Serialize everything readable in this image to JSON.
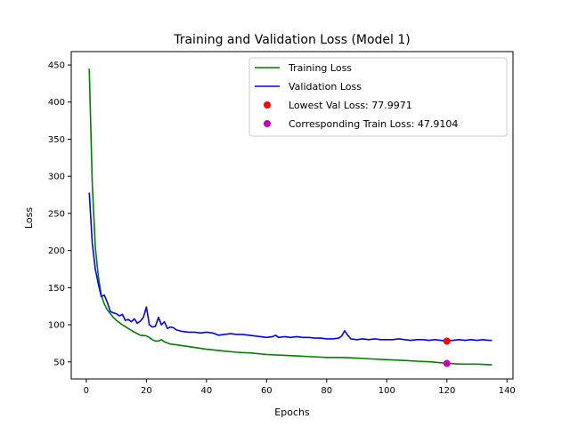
{
  "chart_data": {
    "type": "line",
    "title": "Training and Validation Loss (Model 1)",
    "xlabel": "Epochs",
    "ylabel": "Loss",
    "xlim": [
      -5,
      142
    ],
    "ylim": [
      27,
      468
    ],
    "xticks": [
      0,
      20,
      40,
      60,
      80,
      100,
      120,
      140
    ],
    "yticks": [
      50,
      100,
      150,
      200,
      250,
      300,
      350,
      400,
      450
    ],
    "grid": false,
    "legend_position": "top-right",
    "series": [
      {
        "name": "Training Loss",
        "color": "#008000",
        "x": [
          1,
          2,
          3,
          4,
          5,
          6,
          7,
          8,
          9,
          10,
          12,
          14,
          16,
          18,
          20,
          21,
          22,
          23,
          24,
          25,
          26,
          28,
          30,
          35,
          40,
          45,
          50,
          55,
          60,
          65,
          70,
          75,
          80,
          85,
          90,
          95,
          100,
          105,
          110,
          115,
          120,
          125,
          130,
          135
        ],
        "y": [
          445,
          290,
          205,
          165,
          140,
          128,
          120,
          115,
          110,
          106,
          100,
          95,
          90,
          86,
          85,
          83,
          80,
          78,
          78,
          80,
          77,
          74,
          73,
          70,
          67,
          65,
          63,
          62,
          60,
          59,
          58,
          57,
          56,
          56,
          55,
          54,
          53,
          52,
          51,
          50,
          48,
          47,
          47,
          46
        ]
      },
      {
        "name": "Validation Loss",
        "color": "#0000ff",
        "x": [
          1,
          2,
          3,
          4,
          5,
          6,
          7,
          8,
          9,
          10,
          11,
          12,
          13,
          14,
          15,
          16,
          17,
          18,
          19,
          20,
          21,
          22,
          23,
          24,
          25,
          26,
          27,
          28,
          29,
          30,
          32,
          34,
          36,
          38,
          40,
          42,
          44,
          46,
          48,
          50,
          52,
          54,
          56,
          58,
          60,
          62,
          63,
          64,
          66,
          68,
          70,
          72,
          74,
          76,
          78,
          80,
          82,
          84,
          85,
          86,
          87,
          88,
          90,
          92,
          94,
          96,
          98,
          100,
          102,
          104,
          106,
          108,
          110,
          112,
          114,
          116,
          118,
          120,
          122,
          124,
          126,
          128,
          130,
          132,
          134,
          135
        ],
        "y": [
          278,
          210,
          175,
          155,
          138,
          140,
          130,
          118,
          116,
          115,
          112,
          114,
          106,
          107,
          104,
          108,
          102,
          105,
          110,
          124,
          100,
          97,
          98,
          110,
          100,
          104,
          95,
          97,
          96,
          93,
          91,
          90,
          90,
          89,
          90,
          89,
          86,
          87,
          88,
          87,
          87,
          86,
          85,
          84,
          83,
          84,
          86,
          83,
          84,
          83,
          84,
          83,
          83,
          82,
          82,
          81,
          81,
          82,
          85,
          92,
          86,
          81,
          80,
          81,
          80,
          81,
          80,
          80,
          80,
          81,
          80,
          79,
          80,
          80,
          79,
          80,
          79,
          78,
          79,
          80,
          79,
          80,
          79,
          80,
          79,
          79
        ]
      }
    ],
    "markers": [
      {
        "name": "Lowest Val Loss: 77.9971",
        "color": "#ff0000",
        "x": 120,
        "y": 77.9971
      },
      {
        "name": "Corresponding Train Loss: 47.9104",
        "color": "#bf00bf",
        "x": 120,
        "y": 47.9104
      }
    ]
  }
}
